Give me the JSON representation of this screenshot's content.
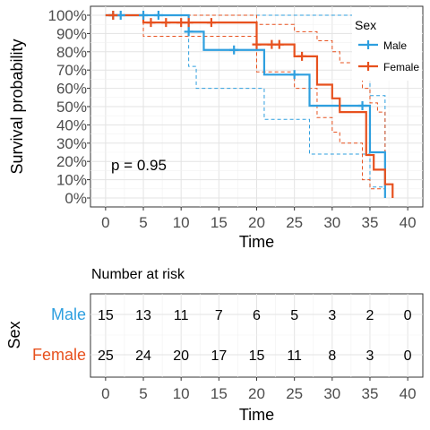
{
  "chart_data": [
    {
      "type": "line",
      "subtype": "kaplan-meier",
      "xlabel": "Time",
      "ylabel": "Survival probability",
      "xlim": [
        -2,
        42
      ],
      "ylim": [
        0,
        1
      ],
      "x_ticks": [
        "0",
        "5",
        "10",
        "15",
        "20",
        "25",
        "30",
        "35",
        "40"
      ],
      "y_ticks": [
        "0%",
        "10%",
        "20%",
        "30%",
        "40%",
        "50%",
        "60%",
        "70%",
        "80%",
        "90%",
        "100%"
      ],
      "grid": true,
      "annotation": "p = 0.95",
      "legend": {
        "title": "Sex",
        "placement": "top-right"
      },
      "series": [
        {
          "name": "Male",
          "color": "#2e9fdf",
          "steps": [
            [
              0,
              1.0
            ],
            [
              11,
              0.91
            ],
            [
              13,
              0.81
            ],
            [
              21,
              0.675
            ],
            [
              26,
              0.675
            ],
            [
              27,
              0.505
            ],
            [
              34,
              0.505
            ],
            [
              35,
              0.25
            ],
            [
              37,
              0.0
            ]
          ],
          "censored": [
            [
              1,
              1.0
            ],
            [
              2,
              1.0
            ],
            [
              5,
              1.0
            ],
            [
              7,
              1.0
            ],
            [
              11,
              0.91
            ],
            [
              17,
              0.81
            ],
            [
              25,
              0.675
            ],
            [
              34,
              0.505
            ]
          ],
          "ci_upper": [
            [
              0,
              1.0
            ],
            [
              35,
              1.0
            ],
            [
              35,
              0.56
            ],
            [
              37,
              0.56
            ],
            [
              37,
              0.0
            ]
          ],
          "ci_lower": [
            [
              0,
              1.0
            ],
            [
              11,
              1.0
            ],
            [
              11,
              0.72
            ],
            [
              12,
              0.72
            ],
            [
              12,
              0.6
            ],
            [
              21,
              0.6
            ],
            [
              21,
              0.43
            ],
            [
              27,
              0.43
            ],
            [
              27,
              0.24
            ],
            [
              35,
              0.24
            ],
            [
              35,
              0.06
            ],
            [
              37,
              0.06
            ],
            [
              37,
              0.0
            ]
          ]
        },
        {
          "name": "Female",
          "color": "#e7511e",
          "steps": [
            [
              0,
              1.0
            ],
            [
              5,
              0.96
            ],
            [
              10,
              0.96
            ],
            [
              11,
              0.96
            ],
            [
              20,
              0.84
            ],
            [
              24,
              0.84
            ],
            [
              25,
              0.775
            ],
            [
              28,
              0.62
            ],
            [
              30,
              0.545
            ],
            [
              31,
              0.47
            ],
            [
              34,
              0.47
            ],
            [
              34.5,
              0.235
            ],
            [
              35,
              0.235
            ],
            [
              35.5,
              0.155
            ],
            [
              37,
              0.075
            ],
            [
              38,
              0.0
            ]
          ],
          "censored": [
            [
              1,
              1.0
            ],
            [
              6,
              0.96
            ],
            [
              8,
              0.96
            ],
            [
              10,
              0.96
            ],
            [
              11,
              0.96
            ],
            [
              14,
              0.96
            ],
            [
              20,
              0.84
            ],
            [
              22,
              0.84
            ],
            [
              23,
              0.84
            ],
            [
              26,
              0.775
            ]
          ],
          "ci_upper": [
            [
              0,
              1.0
            ],
            [
              20,
              1.0
            ],
            [
              20,
              0.95
            ],
            [
              25,
              0.95
            ],
            [
              25,
              0.91
            ],
            [
              28,
              0.91
            ],
            [
              28,
              0.86
            ],
            [
              30,
              0.86
            ],
            [
              30,
              0.8
            ],
            [
              31,
              0.8
            ],
            [
              31,
              0.74
            ],
            [
              34,
              0.74
            ],
            [
              34,
              0.6
            ],
            [
              35,
              0.6
            ],
            [
              35,
              0.52
            ],
            [
              36,
              0.52
            ],
            [
              36,
              0.47
            ],
            [
              37,
              0.47
            ],
            [
              37,
              0.0
            ]
          ],
          "ci_lower": [
            [
              0,
              1.0
            ],
            [
              5,
              1.0
            ],
            [
              5,
              0.885
            ],
            [
              20,
              0.885
            ],
            [
              20,
              0.69
            ],
            [
              25,
              0.69
            ],
            [
              25,
              0.6
            ],
            [
              28,
              0.6
            ],
            [
              28,
              0.44
            ],
            [
              30,
              0.44
            ],
            [
              30,
              0.36
            ],
            [
              31,
              0.36
            ],
            [
              31,
              0.3
            ],
            [
              34,
              0.3
            ],
            [
              34,
              0.1
            ],
            [
              35,
              0.1
            ],
            [
              35,
              0.05
            ],
            [
              37,
              0.05
            ],
            [
              37,
              0.0
            ]
          ]
        }
      ]
    },
    {
      "type": "table",
      "title": "Number at risk",
      "xlabel": "Time",
      "ylabel": "Sex",
      "x_ticks": [
        "0",
        "5",
        "10",
        "15",
        "20",
        "25",
        "30",
        "35",
        "40"
      ],
      "rows": [
        {
          "label": "Male",
          "color": "#2e9fdf",
          "values": [
            "15",
            "13",
            "11",
            "7",
            "6",
            "5",
            "3",
            "2",
            "0"
          ]
        },
        {
          "label": "Female",
          "color": "#e7511e",
          "values": [
            "25",
            "24",
            "20",
            "17",
            "15",
            "11",
            "8",
            "3",
            "0"
          ]
        }
      ]
    }
  ]
}
